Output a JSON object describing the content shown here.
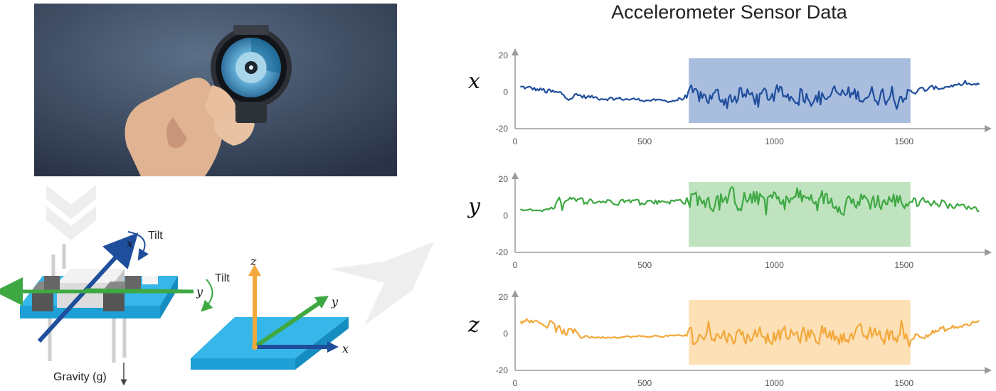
{
  "title": "Accelerometer Sensor Data",
  "diagram": {
    "tilt_x_label": "Tilt",
    "tilt_y_label": "Tilt",
    "gravity_label": "Gravity (g)",
    "sensor_axis_x": "x",
    "sensor_axis_y": "y",
    "plate_axis_x": "x",
    "plate_axis_y": "y",
    "plate_axis_z": "z"
  },
  "colors": {
    "x": "#1f4e9c",
    "y": "#3ea843",
    "z": "#f2a83a",
    "x_highlight": "#a9bddf",
    "y_highlight": "#bfe3bf",
    "z_highlight": "#fde0b6",
    "board": "#37b6e9"
  },
  "chart_data": [
    {
      "type": "line",
      "name": "x",
      "axis_label": "x",
      "xlim": [
        0,
        1800
      ],
      "ylim": [
        -20,
        20
      ],
      "yticks": [
        20,
        0,
        -20
      ],
      "xticks": [
        0,
        500,
        1000,
        1500
      ],
      "highlight": [
        670,
        1525
      ],
      "noise_profile": [
        [
          0,
          3,
          1.2
        ],
        [
          100,
          1,
          1.5
        ],
        [
          150,
          -1,
          2.5
        ],
        [
          300,
          -3,
          1.2
        ],
        [
          600,
          -5,
          0.6
        ],
        [
          650,
          -3,
          1.5
        ],
        [
          670,
          -3,
          5
        ],
        [
          1520,
          -1,
          5
        ],
        [
          1525,
          0,
          2
        ],
        [
          1700,
          4,
          1
        ],
        [
          1800,
          4,
          1
        ]
      ]
    },
    {
      "type": "line",
      "name": "y",
      "axis_label": "y",
      "xlim": [
        0,
        1800
      ],
      "ylim": [
        -20,
        20
      ],
      "yticks": [
        20,
        0,
        -20
      ],
      "xticks": [
        0,
        500,
        1000,
        1500
      ],
      "highlight": [
        670,
        1525
      ],
      "noise_profile": [
        [
          0,
          3,
          0.5
        ],
        [
          120,
          3,
          0.8
        ],
        [
          150,
          7,
          3
        ],
        [
          350,
          8,
          1.5
        ],
        [
          650,
          8,
          1.5
        ],
        [
          670,
          9,
          6
        ],
        [
          1520,
          8,
          6
        ],
        [
          1525,
          9,
          2
        ],
        [
          1650,
          6,
          2
        ],
        [
          1800,
          4,
          1
        ]
      ]
    },
    {
      "type": "line",
      "name": "z",
      "axis_label": "z",
      "xlim": [
        0,
        1800
      ],
      "ylim": [
        -20,
        20
      ],
      "yticks": [
        20,
        0,
        -20
      ],
      "xticks": [
        0,
        500,
        1000,
        1500
      ],
      "highlight": [
        670,
        1525
      ],
      "noise_profile": [
        [
          0,
          8,
          1
        ],
        [
          100,
          6,
          1
        ],
        [
          150,
          2,
          3
        ],
        [
          230,
          0,
          3
        ],
        [
          300,
          -2,
          0.5
        ],
        [
          650,
          -1,
          0.5
        ],
        [
          670,
          -1,
          4.5
        ],
        [
          1520,
          -1,
          4.5
        ],
        [
          1530,
          -1,
          2
        ],
        [
          1650,
          2,
          2
        ],
        [
          1800,
          7,
          1.5
        ]
      ]
    }
  ]
}
